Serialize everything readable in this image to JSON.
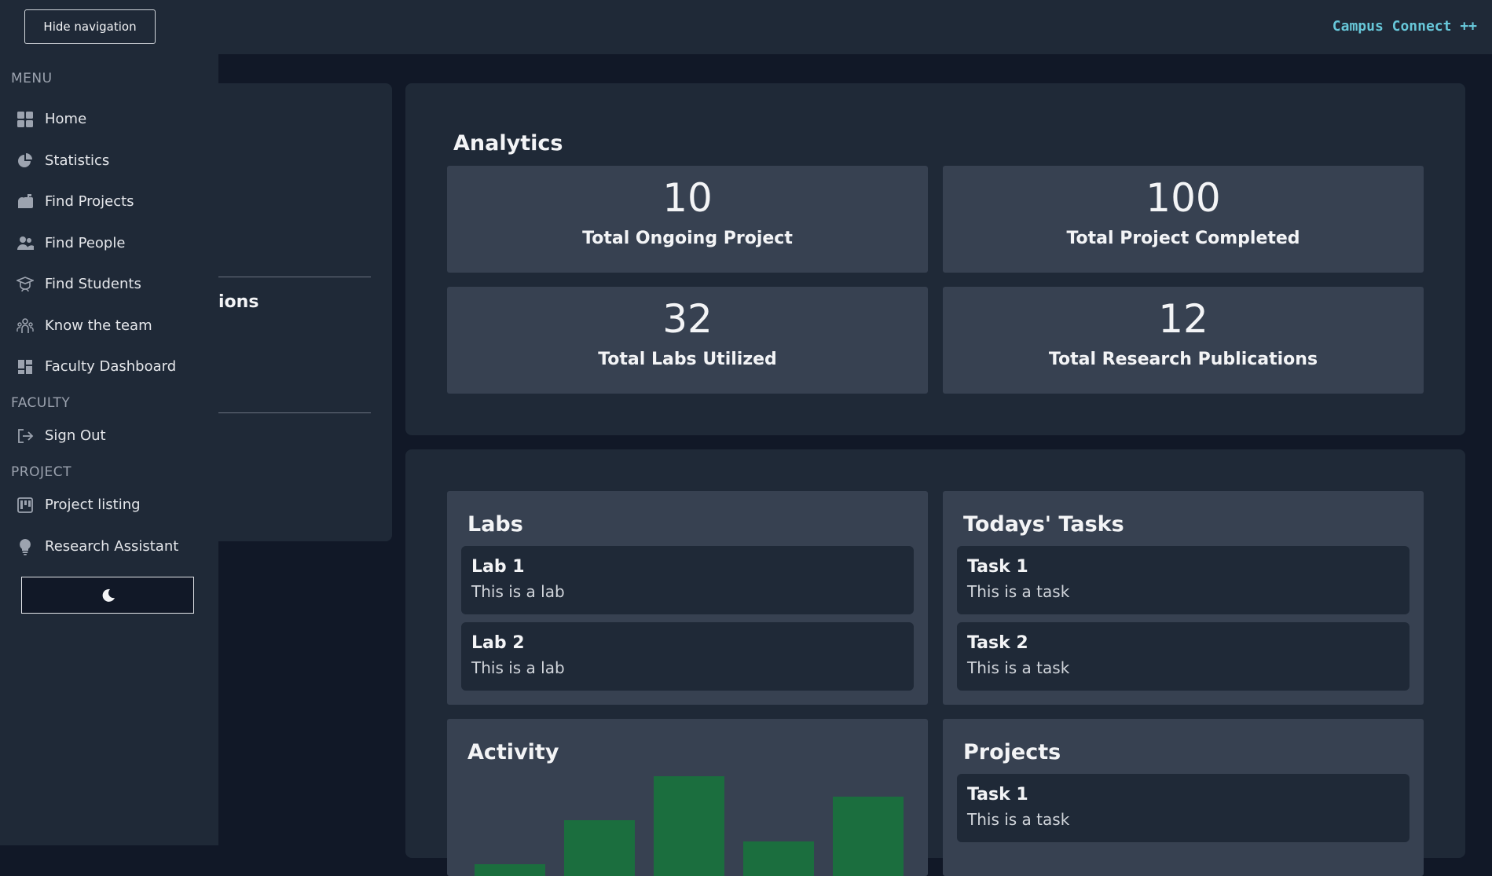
{
  "header": {
    "hide_nav_label": "Hide navigation",
    "brand": "Campus Connect ++"
  },
  "sidebar": {
    "menu_label": "MENU",
    "items": [
      {
        "label": "Home",
        "icon": "home-icon"
      },
      {
        "label": "Statistics",
        "icon": "pie-chart-icon"
      },
      {
        "label": "Find Projects",
        "icon": "mailbox-icon"
      },
      {
        "label": "Find People",
        "icon": "people-icon"
      },
      {
        "label": "Find Students",
        "icon": "student-icon"
      },
      {
        "label": "Know the team",
        "icon": "team-icon"
      },
      {
        "label": "Faculty Dashboard",
        "icon": "dashboard-icon"
      }
    ],
    "faculty_label": "FACULTY",
    "sign_out": "Sign Out",
    "project_label": "PROJECT",
    "project_items": [
      {
        "label": "Project listing",
        "icon": "kanban-icon"
      },
      {
        "label": "Research Assistant",
        "icon": "lightbulb-icon"
      }
    ],
    "theme_toggle_icon": "moon-icon"
  },
  "background_fragment": "ions",
  "analytics": {
    "title": "Analytics",
    "stats": [
      {
        "value": "10",
        "label": "Total Ongoing Project"
      },
      {
        "value": "100",
        "label": "Total Project Completed"
      },
      {
        "value": "32",
        "label": "Total Labs Utilized"
      },
      {
        "value": "12",
        "label": "Total Research Publications"
      }
    ]
  },
  "labs": {
    "title": "Labs",
    "items": [
      {
        "title": "Lab 1",
        "desc": "This is a lab"
      },
      {
        "title": "Lab 2",
        "desc": "This is a lab"
      }
    ]
  },
  "tasks": {
    "title": "Todays' Tasks",
    "items": [
      {
        "title": "Task 1",
        "desc": "This is a task"
      },
      {
        "title": "Task 2",
        "desc": "This is a task"
      }
    ]
  },
  "activity": {
    "title": "Activity"
  },
  "projects": {
    "title": "Projects",
    "items": [
      {
        "title": "Task 1",
        "desc": "This is a task"
      }
    ]
  },
  "colors": {
    "background": "#111827",
    "panel": "#1f2937",
    "card": "#374151",
    "brand": "#67c7d9",
    "bar": "#1b6e3e"
  },
  "chart_data": {
    "type": "bar",
    "title": "Activity",
    "categories": [
      "",
      "",
      "",
      "",
      ""
    ],
    "values": [
      10,
      48,
      86,
      30,
      68
    ],
    "ylim": [
      0,
      100
    ],
    "note_visible": "bars are cropped at the bottom edge of the screenshot"
  }
}
